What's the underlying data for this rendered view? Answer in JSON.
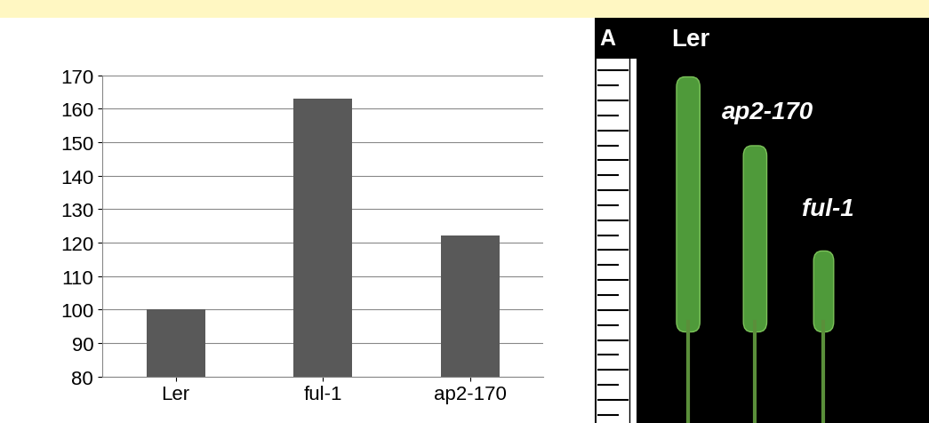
{
  "chart_data": {
    "type": "bar",
    "categories": [
      "Ler",
      "ful-1",
      "ap2-170"
    ],
    "values": [
      100,
      163,
      122
    ],
    "color": "#595959",
    "ylim": [
      80,
      170
    ],
    "yticks": [
      80,
      90,
      100,
      110,
      120,
      130,
      140,
      150,
      160,
      170
    ],
    "grid": true
  },
  "photo_panel": {
    "panel_label": "A",
    "labels": [
      "Ler",
      "ap2-170",
      "ful-1"
    ]
  }
}
